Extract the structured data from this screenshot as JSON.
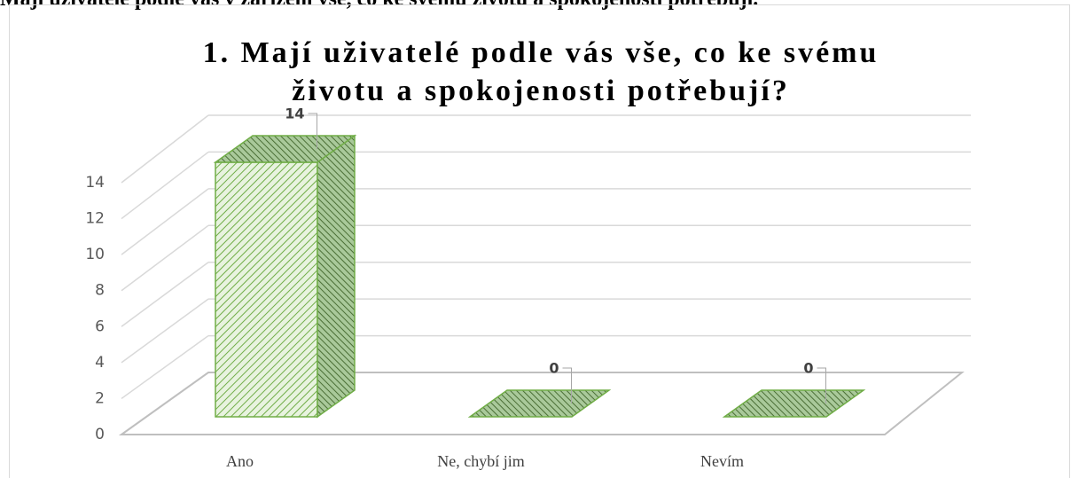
{
  "heading": "Mají uživatelé podle vás v zařízení vše, co ke svému životu a spokojenosti potřebují.",
  "chart_data": {
    "type": "bar3d",
    "title": "1. Mají uživatelé podle vás vše, co ke svému životu a spokojenosti potřebují?",
    "categories": [
      "Ano",
      "Ne, chybí jim",
      "Nevím"
    ],
    "values": [
      14,
      0,
      0
    ],
    "color": "#70ad47",
    "ylim": [
      0,
      14
    ],
    "yticks": [
      0,
      2,
      4,
      6,
      8,
      10,
      12,
      14
    ],
    "grid": true,
    "data_labels": true
  }
}
